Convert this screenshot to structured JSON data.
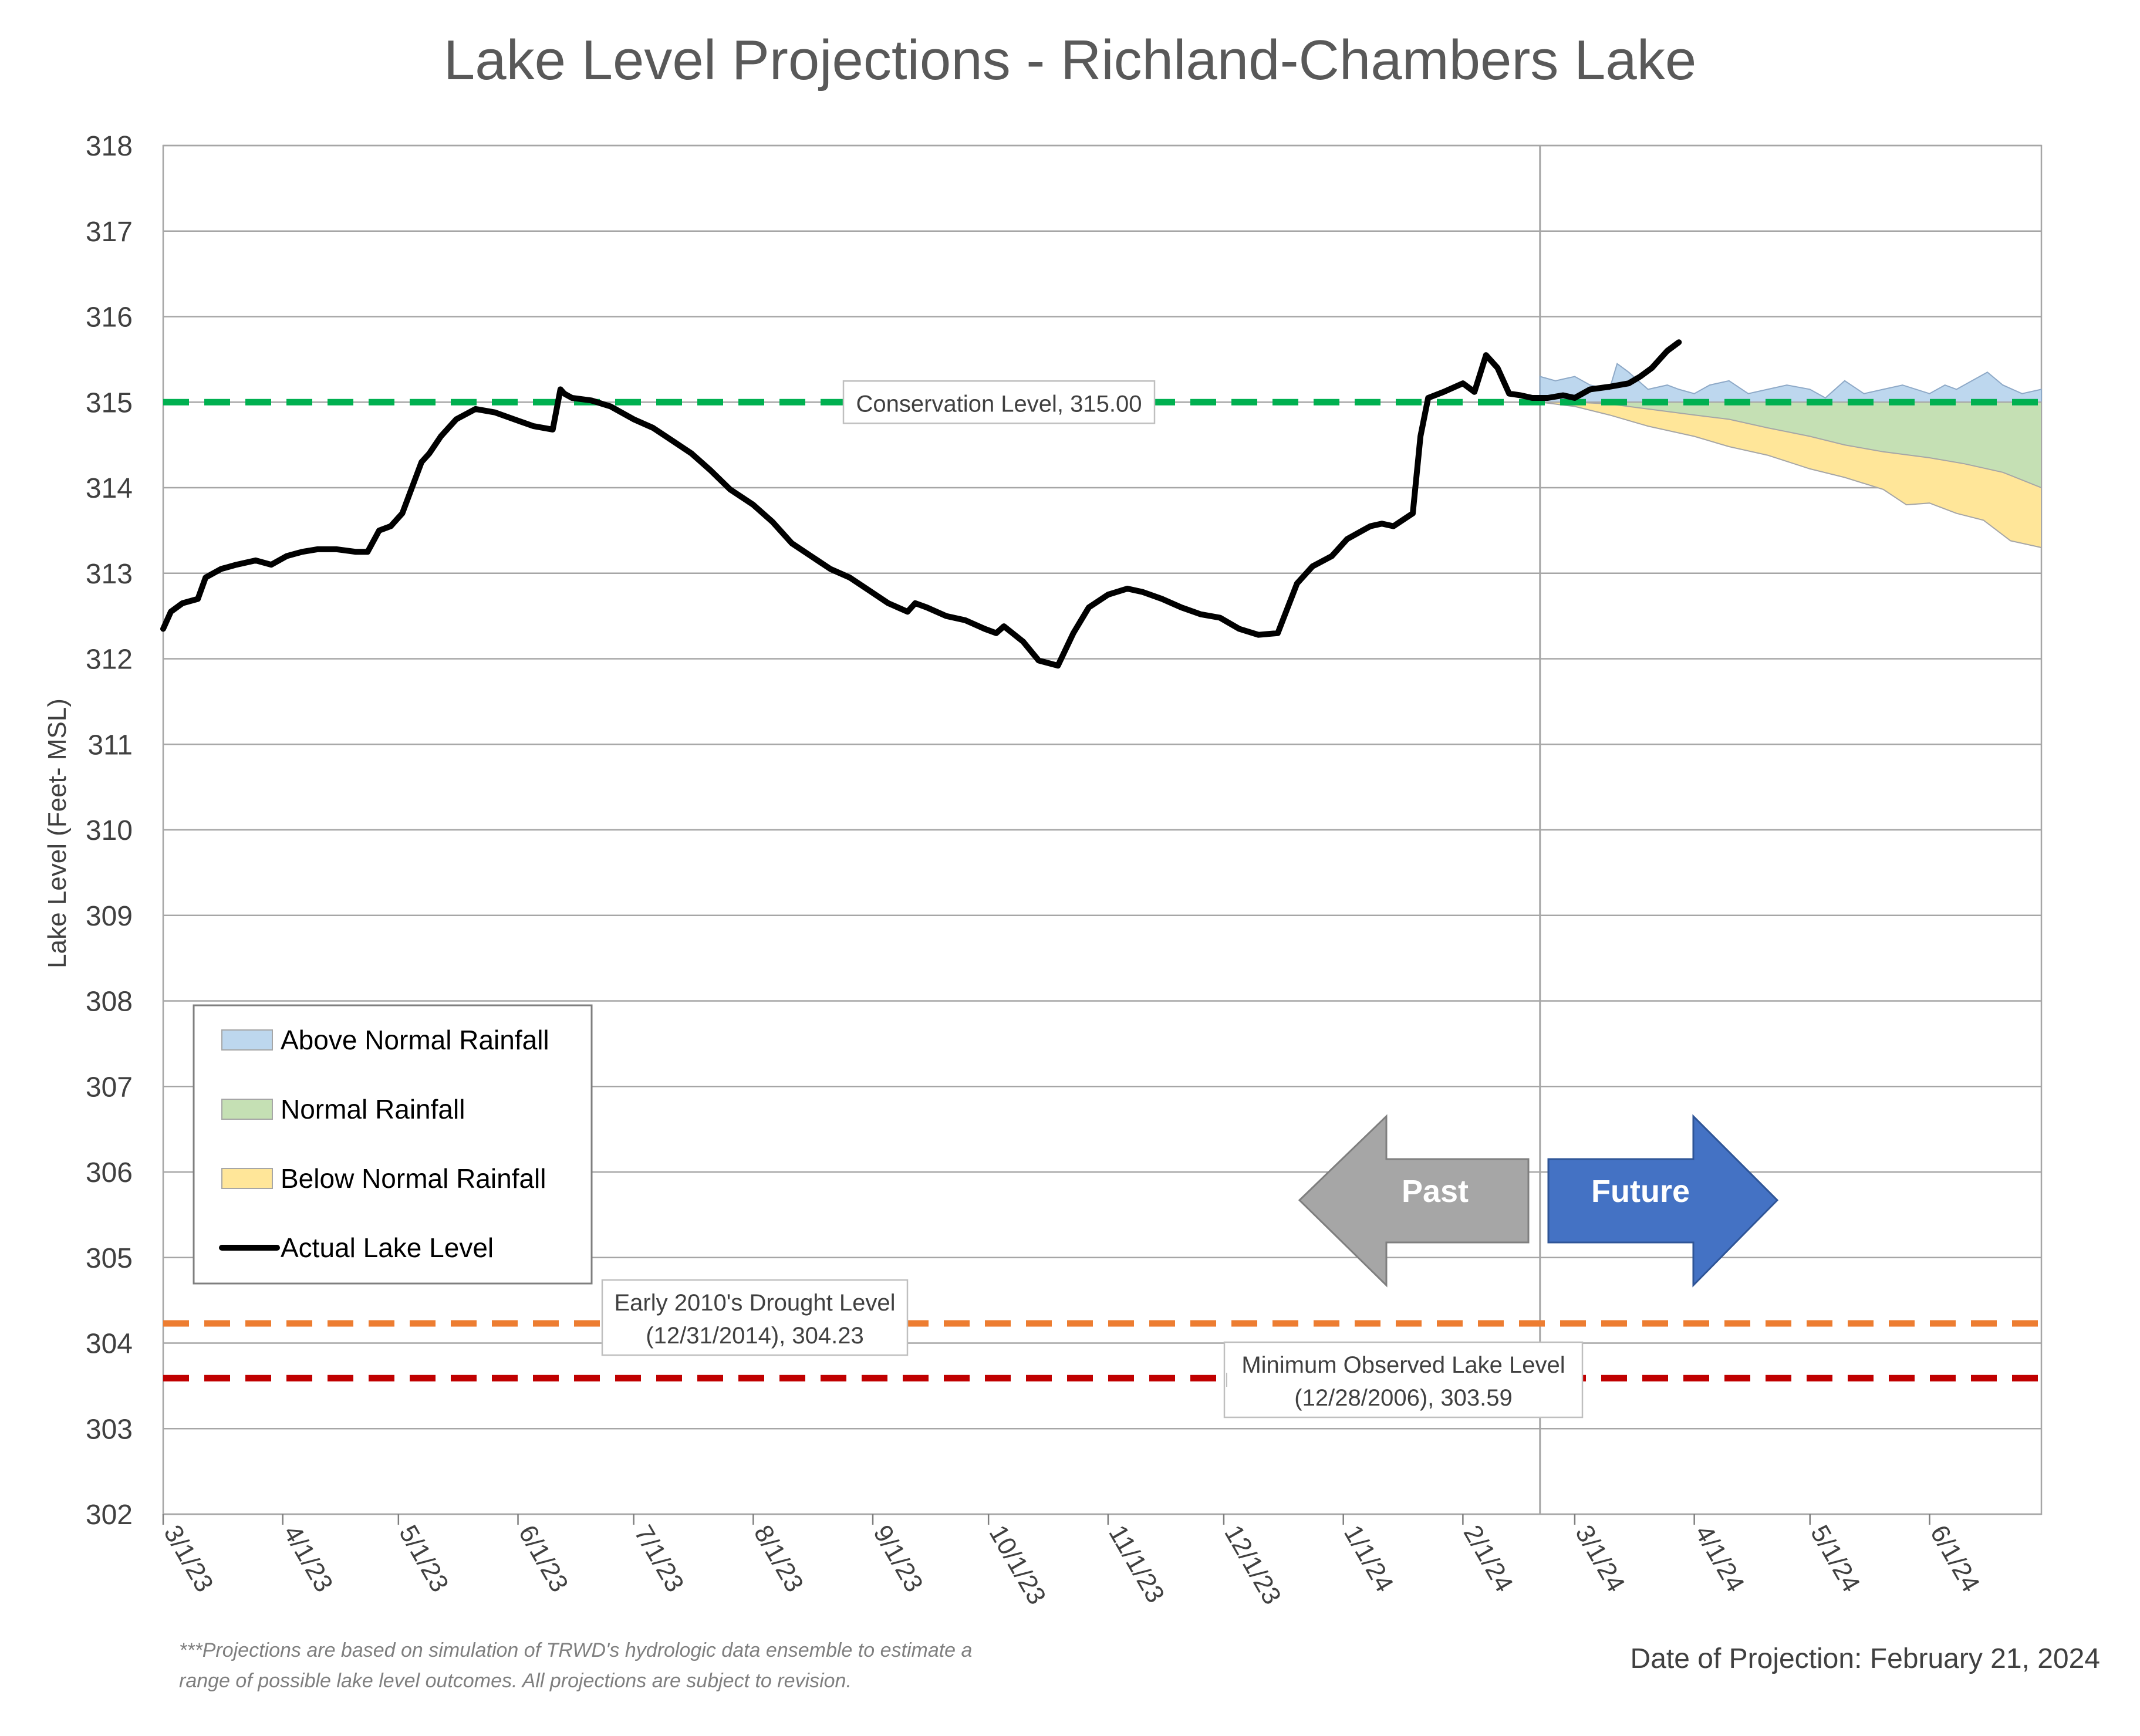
{
  "chart_data": {
    "type": "area",
    "title": "Lake Level Projections - Richland-Chambers Lake",
    "ylabel": "Lake Level (Feet- MSL)",
    "xlabel": "",
    "ylim": [
      302,
      318
    ],
    "yticks": [
      302,
      303,
      304,
      305,
      306,
      307,
      308,
      309,
      310,
      311,
      312,
      313,
      314,
      315,
      316,
      317,
      318
    ],
    "xlim": [
      "2023-03-01",
      "2024-06-30"
    ],
    "x_ticks": [
      {
        "date": "2023-03-01",
        "label": "3/1/23"
      },
      {
        "date": "2023-04-01",
        "label": "4/1/23"
      },
      {
        "date": "2023-05-01",
        "label": "5/1/23"
      },
      {
        "date": "2023-06-01",
        "label": "6/1/23"
      },
      {
        "date": "2023-07-01",
        "label": "7/1/23"
      },
      {
        "date": "2023-08-01",
        "label": "8/1/23"
      },
      {
        "date": "2023-09-01",
        "label": "9/1/23"
      },
      {
        "date": "2023-10-01",
        "label": "10/1/23"
      },
      {
        "date": "2023-11-01",
        "label": "11/1/23"
      },
      {
        "date": "2023-12-01",
        "label": "12/1/23"
      },
      {
        "date": "2024-01-01",
        "label": "1/1/24"
      },
      {
        "date": "2024-02-01",
        "label": "2/1/24"
      },
      {
        "date": "2024-03-01",
        "label": "3/1/24"
      },
      {
        "date": "2024-04-01",
        "label": "4/1/24"
      },
      {
        "date": "2024-05-01",
        "label": "5/1/24"
      },
      {
        "date": "2024-06-01",
        "label": "6/1/24"
      }
    ],
    "grid": true,
    "legend_position": "lower-left",
    "projection_date": "2024-02-21",
    "series": [
      {
        "name": "Above Normal Rainfall",
        "kind": "area",
        "color": "#bdd7ee",
        "x": [
          "2024-02-21",
          "2024-02-25",
          "2024-03-01",
          "2024-03-05",
          "2024-03-10",
          "2024-03-12",
          "2024-03-15",
          "2024-03-20",
          "2024-03-25",
          "2024-03-28",
          "2024-04-01",
          "2024-04-05",
          "2024-04-10",
          "2024-04-15",
          "2024-04-20",
          "2024-04-25",
          "2024-05-01",
          "2024-05-05",
          "2024-05-10",
          "2024-05-15",
          "2024-05-20",
          "2024-05-25",
          "2024-06-01",
          "2024-06-05",
          "2024-06-08",
          "2024-06-12",
          "2024-06-16",
          "2024-06-20",
          "2024-06-25",
          "2024-06-30"
        ],
        "values": [
          315.3,
          315.25,
          315.3,
          315.2,
          315.15,
          315.45,
          315.35,
          315.15,
          315.2,
          315.15,
          315.1,
          315.2,
          315.25,
          315.1,
          315.15,
          315.2,
          315.15,
          315.05,
          315.25,
          315.1,
          315.15,
          315.2,
          315.1,
          315.2,
          315.15,
          315.25,
          315.35,
          315.2,
          315.1,
          315.15
        ]
      },
      {
        "name": "Normal Rainfall",
        "kind": "area",
        "color": "#c5e0b4",
        "x": [
          "2024-02-21",
          "2024-03-01",
          "2024-03-10",
          "2024-03-20",
          "2024-04-01",
          "2024-04-10",
          "2024-04-20",
          "2024-05-01",
          "2024-05-10",
          "2024-05-20",
          "2024-06-01",
          "2024-06-10",
          "2024-06-20",
          "2024-06-30"
        ],
        "values": [
          315.0,
          315.0,
          314.98,
          314.92,
          314.85,
          314.8,
          314.7,
          314.6,
          314.5,
          314.42,
          314.35,
          314.28,
          314.18,
          314.0
        ]
      },
      {
        "name": "Below Normal Rainfall",
        "kind": "area",
        "color": "#ffe699",
        "x": [
          "2024-02-21",
          "2024-03-01",
          "2024-03-10",
          "2024-03-20",
          "2024-04-01",
          "2024-04-10",
          "2024-04-20",
          "2024-05-01",
          "2024-05-10",
          "2024-05-20",
          "2024-05-26",
          "2024-06-01",
          "2024-06-08",
          "2024-06-15",
          "2024-06-22",
          "2024-06-30"
        ],
        "values": [
          315.0,
          314.95,
          314.85,
          314.72,
          314.6,
          314.48,
          314.38,
          314.22,
          314.12,
          313.98,
          313.8,
          313.82,
          313.7,
          313.62,
          313.38,
          313.3
        ]
      },
      {
        "name": "Actual Lake Level",
        "kind": "line",
        "color": "#000000",
        "x": [
          "2023-03-01",
          "2023-03-03",
          "2023-03-06",
          "2023-03-10",
          "2023-03-12",
          "2023-03-16",
          "2023-03-20",
          "2023-03-25",
          "2023-03-29",
          "2023-04-02",
          "2023-04-06",
          "2023-04-10",
          "2023-04-15",
          "2023-04-20",
          "2023-04-23",
          "2023-04-26",
          "2023-04-29",
          "2023-05-02",
          "2023-05-07",
          "2023-05-09",
          "2023-05-12",
          "2023-05-16",
          "2023-05-21",
          "2023-05-26",
          "2023-05-31",
          "2023-06-05",
          "2023-06-10",
          "2023-06-12",
          "2023-06-13",
          "2023-06-15",
          "2023-06-20",
          "2023-06-25",
          "2023-07-01",
          "2023-07-06",
          "2023-07-11",
          "2023-07-16",
          "2023-07-21",
          "2023-07-26",
          "2023-08-01",
          "2023-08-06",
          "2023-08-11",
          "2023-08-16",
          "2023-08-21",
          "2023-08-26",
          "2023-08-31",
          "2023-09-05",
          "2023-09-10",
          "2023-09-12",
          "2023-09-15",
          "2023-09-20",
          "2023-09-25",
          "2023-09-30",
          "2023-10-03",
          "2023-10-05",
          "2023-10-10",
          "2023-10-14",
          "2023-10-19",
          "2023-10-23",
          "2023-10-27",
          "2023-11-01",
          "2023-11-06",
          "2023-11-10",
          "2023-11-15",
          "2023-11-20",
          "2023-11-25",
          "2023-11-30",
          "2023-12-05",
          "2023-12-10",
          "2023-12-15",
          "2023-12-20",
          "2023-12-24",
          "2023-12-29",
          "2024-01-02",
          "2024-01-06",
          "2024-01-08",
          "2024-01-11",
          "2024-01-14",
          "2024-01-19",
          "2024-01-21",
          "2024-01-23",
          "2024-01-27",
          "2024-02-01",
          "2024-02-04",
          "2024-02-07",
          "2024-02-10",
          "2024-02-13",
          "2024-02-16",
          "2024-02-19",
          "2024-02-23",
          "2024-02-27",
          "2024-03-01",
          "2024-03-05",
          "2024-03-10",
          "2024-03-15",
          "2024-03-18",
          "2024-03-21",
          "2024-03-25",
          "2024-03-28"
        ],
        "values": [
          312.35,
          312.55,
          312.65,
          312.7,
          312.95,
          313.05,
          313.1,
          313.15,
          313.1,
          313.2,
          313.25,
          313.28,
          313.28,
          313.25,
          313.25,
          313.5,
          313.55,
          313.7,
          314.3,
          314.4,
          314.6,
          314.8,
          314.92,
          314.88,
          314.8,
          314.72,
          314.68,
          315.15,
          315.1,
          315.05,
          315.02,
          314.95,
          314.8,
          314.7,
          314.55,
          314.4,
          314.2,
          313.98,
          313.8,
          313.6,
          313.35,
          313.2,
          313.05,
          312.95,
          312.8,
          312.65,
          312.55,
          312.65,
          312.6,
          312.5,
          312.45,
          312.35,
          312.3,
          312.38,
          312.2,
          311.98,
          311.92,
          312.3,
          312.6,
          312.75,
          312.82,
          312.78,
          312.7,
          312.6,
          312.52,
          312.48,
          312.35,
          312.28,
          312.3,
          312.88,
          313.08,
          313.2,
          313.4,
          313.5,
          313.55,
          313.58,
          313.55,
          313.7,
          314.6,
          315.05,
          315.12,
          315.22,
          315.12,
          315.55,
          315.4,
          315.1,
          315.08,
          315.05,
          315.05,
          315.08,
          315.05,
          315.15,
          315.18,
          315.22,
          315.3,
          315.4,
          315.6,
          315.7
        ]
      },
      {
        "name": "Conservation Level, 315.00",
        "kind": "reference",
        "color": "#00b050",
        "value": 315.0
      },
      {
        "name": "Early 2010's Drought Level (12/31/2014), 304.23",
        "kind": "reference",
        "color": "#ed7d31",
        "value": 304.23
      },
      {
        "name": "Minimum Observed Lake Level (12/28/2006), 303.59",
        "kind": "reference",
        "color": "#c00000",
        "value": 303.59
      }
    ],
    "annotations": {
      "conservation": "Conservation Level, 315.00",
      "drought_line1": "Early 2010's Drought Level",
      "drought_line2": "(12/31/2014), 304.23",
      "minimum_line1": "Minimum Observed Lake Level",
      "minimum_line2": "(12/28/2006), 303.59"
    },
    "arrows": {
      "past": "Past",
      "future": "Future",
      "past_color": "#a6a6a6",
      "future_color": "#4472c4"
    },
    "legend": [
      {
        "label": "Above Normal Rainfall",
        "color": "#bdd7ee",
        "kind": "area"
      },
      {
        "label": "Normal Rainfall",
        "color": "#c5e0b4",
        "kind": "area"
      },
      {
        "label": "Below Normal Rainfall",
        "color": "#ffe699",
        "kind": "area"
      },
      {
        "label": "Actual Lake Level",
        "color": "#000000",
        "kind": "line"
      }
    ],
    "footnote_line1": "***Projections are based on simulation of TRWD's hydrologic data ensemble to estimate a",
    "footnote_line2": "range of possible lake level outcomes.  All projections are subject to revision.",
    "projection_label": "Date of Projection: February 21, 2024"
  }
}
